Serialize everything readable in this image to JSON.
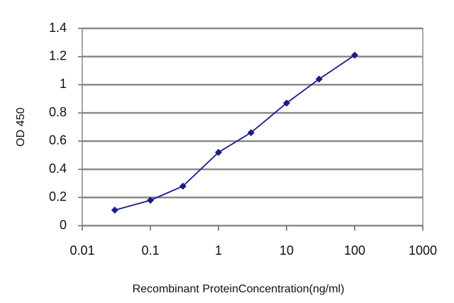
{
  "chart_data": {
    "type": "line",
    "x_label": "Recombinant ProteinConcentration(ng/ml)",
    "y_label": "OD 450",
    "x": [
      0.03,
      0.1,
      0.3,
      1,
      3,
      10,
      30,
      100
    ],
    "values": [
      0.11,
      0.18,
      0.28,
      0.52,
      0.66,
      0.87,
      1.04,
      1.21
    ],
    "color": "#1c1c8a",
    "xscale": "log",
    "xlim": [
      0.01,
      1000
    ],
    "xticks": [
      0.01,
      0.1,
      1,
      10,
      100,
      1000
    ],
    "ylim": [
      0,
      1.4
    ],
    "yticks": [
      0,
      0.2,
      0.4,
      0.6,
      0.8,
      1,
      1.2,
      1.4
    ],
    "grid": true
  }
}
